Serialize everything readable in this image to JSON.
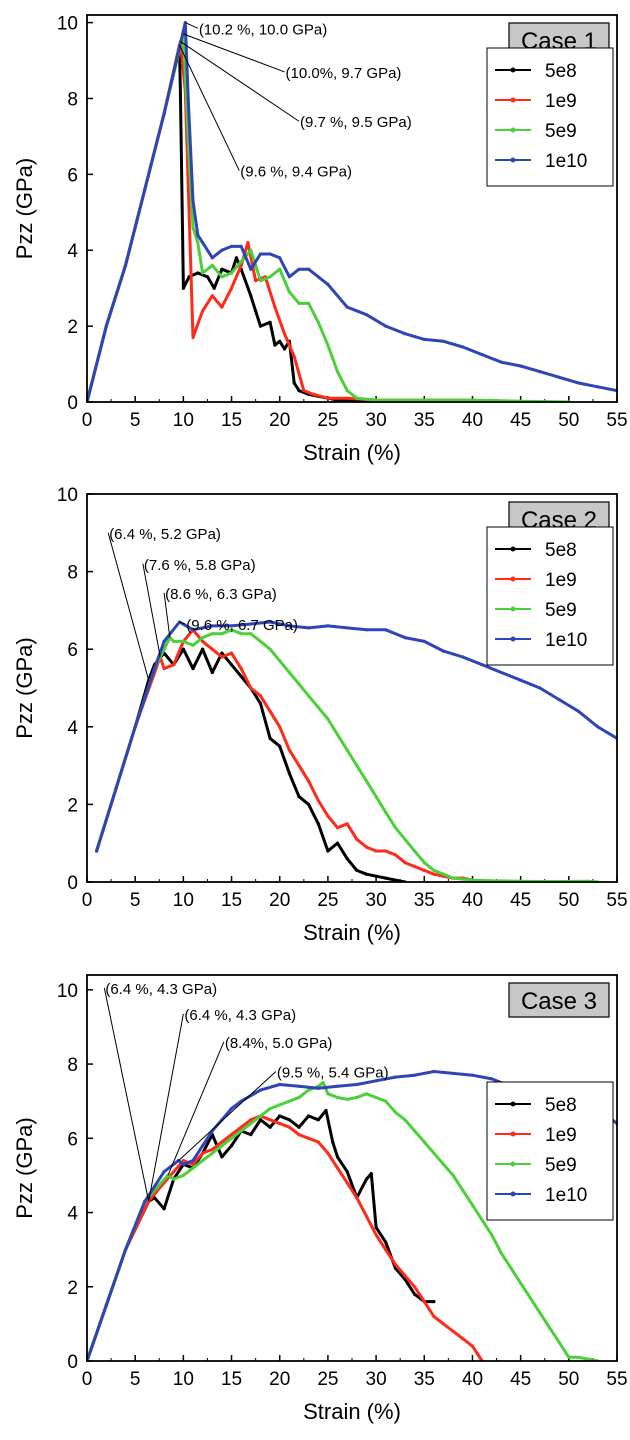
{
  "figure": {
    "colors": {
      "5e8": "#000000",
      "1e9": "#ff2a1a",
      "5e9": "#4cd03a",
      "1e10": "#2f45b5"
    }
  },
  "chart_data": [
    {
      "type": "line",
      "case_label": "Case 1",
      "xlabel": "Strain (%)",
      "ylabel": "Pzz (GPa)",
      "xlim": [
        0,
        55
      ],
      "ylim": [
        0,
        10.2
      ],
      "xticks": [
        "0",
        "5",
        "10",
        "15",
        "20",
        "25",
        "30",
        "35",
        "40",
        "45",
        "50",
        "55"
      ],
      "yticks": [
        "0",
        "2",
        "4",
        "6",
        "8",
        "10"
      ],
      "legend_position": "top-right",
      "series": [
        {
          "name": "5e8",
          "color": "#000000",
          "x": [
            0,
            2,
            4,
            6,
            8,
            9.6,
            9.7,
            10,
            10.6,
            11.5,
            12.5,
            13.2,
            14,
            15,
            15.5,
            16,
            17,
            17.5,
            18,
            19,
            19.5,
            20,
            20.5,
            21,
            21.5,
            22,
            23,
            24,
            25,
            26,
            27,
            28,
            29,
            30,
            32,
            33.5
          ],
          "y": [
            0,
            2,
            3.6,
            5.6,
            7.6,
            9.4,
            8,
            3,
            3.3,
            3.4,
            3.3,
            3,
            3.5,
            3.4,
            3.8,
            3.5,
            2.8,
            2.4,
            2,
            2.1,
            1.5,
            1.6,
            1.4,
            1.6,
            0.5,
            0.3,
            0.2,
            0.15,
            0.1,
            0.05,
            0.05,
            0.05,
            0.02,
            0.02,
            0,
            0
          ]
        },
        {
          "name": "1e9",
          "color": "#ff2a1a",
          "x": [
            0,
            2,
            4,
            6,
            8,
            9.7,
            10.2,
            11,
            12,
            13,
            14,
            15,
            16,
            16.7,
            17.5,
            18.5,
            19.5,
            20.5,
            21.5,
            22.5,
            23.5,
            25,
            27,
            30,
            35,
            40,
            43
          ],
          "y": [
            0,
            2,
            3.6,
            5.6,
            7.6,
            9.5,
            8.2,
            1.7,
            2.4,
            2.8,
            2.5,
            3,
            3.6,
            4.2,
            3.2,
            3.3,
            2.5,
            1.8,
            1.2,
            0.3,
            0.2,
            0.1,
            0.1,
            0.05,
            0.05,
            0.05,
            0
          ]
        },
        {
          "name": "5e9",
          "color": "#4cd03a",
          "x": [
            0,
            2,
            4,
            6,
            8,
            10,
            10.6,
            11,
            11.5,
            12,
            13,
            14,
            15,
            16,
            17,
            18,
            19,
            20,
            21,
            22,
            23,
            24,
            25,
            26,
            27,
            28,
            30,
            35,
            40,
            45,
            50
          ],
          "y": [
            0,
            2,
            3.6,
            5.6,
            7.6,
            9.7,
            6.5,
            4.6,
            4.2,
            3.4,
            3.6,
            3.3,
            3.4,
            3.7,
            4,
            3.2,
            3.3,
            3.5,
            2.9,
            2.6,
            2.6,
            2.1,
            1.5,
            0.8,
            0.3,
            0.1,
            0.05,
            0.05,
            0.05,
            0.02,
            0
          ]
        },
        {
          "name": "1e10",
          "color": "#2f45b5",
          "x": [
            0,
            2,
            4,
            6,
            8,
            10.2,
            10.5,
            11,
            11.5,
            12,
            13,
            14,
            15,
            16,
            17,
            18,
            19,
            20,
            21,
            22,
            23,
            25,
            27,
            29,
            31,
            33,
            35,
            37,
            39,
            41,
            43,
            45,
            47,
            49,
            51,
            53,
            55
          ],
          "y": [
            0,
            2,
            3.6,
            5.6,
            7.6,
            10,
            8,
            5.3,
            4.4,
            4.2,
            3.8,
            4,
            4.1,
            4.1,
            3.5,
            3.9,
            3.9,
            3.8,
            3.3,
            3.5,
            3.5,
            3.1,
            2.5,
            2.3,
            2,
            1.8,
            1.65,
            1.6,
            1.45,
            1.25,
            1.05,
            0.95,
            0.8,
            0.65,
            0.5,
            0.4,
            0.3
          ]
        }
      ],
      "annotations": [
        {
          "text": "(10.2 %, 10.0 GPa)",
          "px": 10.2,
          "py": 10.0,
          "tx": 11.5,
          "ty": 9.85
        },
        {
          "text": "(10.0%, 9.7 GPa)",
          "px": 10.0,
          "py": 9.7,
          "tx": 20.5,
          "ty": 8.7
        },
        {
          "text": "(9.7 %, 9.5 GPa)",
          "px": 9.7,
          "py": 9.5,
          "tx": 22.0,
          "ty": 7.4
        },
        {
          "text": "(9.6 %, 9.4 GPa)",
          "px": 9.6,
          "py": 9.4,
          "tx": 15.8,
          "ty": 6.1
        }
      ]
    },
    {
      "type": "line",
      "case_label": "Case 2",
      "xlabel": "Strain (%)",
      "ylabel": "Pzz (GPa)",
      "xlim": [
        0,
        55
      ],
      "ylim": [
        0,
        10
      ],
      "xticks": [
        "0",
        "5",
        "10",
        "15",
        "20",
        "25",
        "30",
        "35",
        "40",
        "45",
        "50",
        "55"
      ],
      "yticks": [
        "0",
        "2",
        "4",
        "6",
        "8",
        "10"
      ],
      "legend_position": "top-right",
      "series": [
        {
          "name": "5e8",
          "color": "#000000",
          "x": [
            1,
            3,
            5,
            6.4,
            7,
            8,
            9,
            10,
            11,
            12,
            13,
            14,
            15,
            16,
            17,
            18,
            19,
            20,
            21,
            22,
            23,
            24,
            25,
            26,
            27,
            28,
            29,
            30,
            31,
            32,
            33
          ],
          "y": [
            0.8,
            2.4,
            4,
            5.2,
            5.6,
            5.9,
            5.6,
            6,
            5.5,
            6,
            5.4,
            5.9,
            5.6,
            5.3,
            5,
            4.6,
            3.7,
            3.5,
            2.8,
            2.2,
            2,
            1.5,
            0.8,
            1,
            0.6,
            0.3,
            0.2,
            0.15,
            0.1,
            0.05,
            0
          ]
        },
        {
          "name": "1e9",
          "color": "#ff2a1a",
          "x": [
            1,
            3,
            5,
            7.6,
            8,
            9,
            10,
            11,
            12,
            13,
            14,
            15,
            16,
            17,
            18,
            19,
            20,
            21,
            22,
            23,
            24,
            25,
            26,
            27,
            28,
            29,
            30,
            31,
            32,
            33,
            34,
            35,
            36,
            37,
            38,
            39,
            40,
            41
          ],
          "y": [
            0.8,
            2.4,
            4,
            5.8,
            5.5,
            5.6,
            6.2,
            6.5,
            6.2,
            6,
            5.8,
            5.9,
            5.5,
            5,
            4.8,
            4.4,
            4,
            3.4,
            3,
            2.6,
            2.1,
            1.7,
            1.4,
            1.5,
            1.1,
            0.9,
            0.8,
            0.8,
            0.7,
            0.5,
            0.4,
            0.3,
            0.2,
            0.15,
            0.1,
            0.1,
            0.05,
            0
          ]
        },
        {
          "name": "5e9",
          "color": "#4cd03a",
          "x": [
            1,
            3,
            5,
            7,
            8.6,
            9,
            10,
            11,
            12,
            13,
            14,
            15,
            16,
            17,
            18,
            19,
            20,
            21,
            22,
            23,
            24,
            25,
            26,
            27,
            28,
            29,
            30,
            31,
            32,
            33,
            34,
            35,
            36,
            37,
            38,
            40,
            42,
            45,
            48,
            52,
            53
          ],
          "y": [
            0.8,
            2.4,
            4,
            5.5,
            6.3,
            6.2,
            6.2,
            6.1,
            6.3,
            6.4,
            6.4,
            6.5,
            6.4,
            6.4,
            6.2,
            6,
            5.7,
            5.4,
            5.1,
            4.8,
            4.5,
            4.2,
            3.8,
            3.4,
            3,
            2.6,
            2.2,
            1.8,
            1.4,
            1.1,
            0.8,
            0.5,
            0.3,
            0.2,
            0.1,
            0.05,
            0.03,
            0.02,
            0.01,
            0.02,
            0
          ]
        },
        {
          "name": "1e10",
          "color": "#2f45b5",
          "x": [
            1,
            3,
            5,
            7,
            8,
            9.6,
            11,
            13,
            15,
            17,
            19,
            21,
            23,
            25,
            27,
            29,
            31,
            33,
            35,
            37,
            39,
            41,
            43,
            45,
            47,
            49,
            51,
            53,
            55
          ],
          "y": [
            0.8,
            2.4,
            4,
            5.5,
            6.2,
            6.7,
            6.5,
            6.6,
            6.6,
            6.65,
            6.7,
            6.6,
            6.55,
            6.6,
            6.55,
            6.5,
            6.5,
            6.3,
            6.2,
            5.95,
            5.8,
            5.6,
            5.4,
            5.2,
            5,
            4.7,
            4.4,
            4,
            3.7
          ]
        }
      ],
      "annotations": [
        {
          "text": "(6.4 %, 5.2 GPa)",
          "px": 6.4,
          "py": 5.2,
          "tx": 2.2,
          "ty": 9.0
        },
        {
          "text": "(7.6 %, 5.8 GPa)",
          "px": 7.6,
          "py": 5.8,
          "tx": 5.8,
          "ty": 8.2
        },
        {
          "text": "(8.6 %, 6.3 GPa)",
          "px": 8.6,
          "py": 6.3,
          "tx": 8.0,
          "ty": 7.45
        },
        {
          "text": "(9.6 %, 6.7 GPa)",
          "px": 9.6,
          "py": 6.7,
          "tx": 10.2,
          "ty": 6.65
        }
      ]
    },
    {
      "type": "line",
      "case_label": "Case 3",
      "xlabel": "Strain (%)",
      "ylabel": "Pzz (GPa)",
      "xlim": [
        0,
        55
      ],
      "ylim": [
        0,
        10.4
      ],
      "xticks": [
        "0",
        "5",
        "10",
        "15",
        "20",
        "25",
        "30",
        "35",
        "40",
        "45",
        "50",
        "55"
      ],
      "yticks": [
        "0",
        "2",
        "4",
        "6",
        "8",
        "10"
      ],
      "legend_position": "right",
      "series": [
        {
          "name": "5e8",
          "color": "#000000",
          "x": [
            0,
            2,
            4,
            6.4,
            7,
            8,
            9,
            10,
            11,
            12,
            13,
            14,
            15,
            16,
            17,
            18,
            19,
            20,
            21,
            22,
            23,
            24,
            24.8,
            25.5,
            26,
            27,
            28,
            29,
            29.5,
            30,
            31,
            32,
            33,
            34,
            35,
            36
          ],
          "y": [
            0,
            1.5,
            3,
            4.3,
            4.4,
            4.1,
            4.9,
            5.3,
            5.2,
            5.6,
            6.1,
            5.5,
            5.8,
            6.2,
            6.1,
            6.5,
            6.3,
            6.6,
            6.5,
            6.3,
            6.6,
            6.5,
            6.75,
            5.9,
            5.5,
            5.1,
            4.4,
            4.9,
            5.05,
            3.6,
            3.2,
            2.5,
            2.2,
            1.8,
            1.6,
            1.6
          ]
        },
        {
          "name": "1e9",
          "color": "#ff2a1a",
          "x": [
            0,
            2,
            4,
            6.4,
            7,
            8,
            9,
            10,
            11,
            12,
            13,
            14,
            15,
            16,
            17,
            18,
            19,
            20,
            21,
            22,
            23,
            24,
            25,
            26,
            27,
            28,
            29,
            30,
            31,
            32,
            33,
            34,
            35,
            36,
            37,
            38,
            39,
            40,
            40.5,
            41
          ],
          "y": [
            0,
            1.5,
            3,
            4.3,
            4.5,
            4.8,
            5.1,
            5.4,
            5.3,
            5.6,
            5.7,
            5.9,
            6.1,
            6.3,
            6.5,
            6.6,
            6.5,
            6.4,
            6.3,
            6.1,
            6,
            5.9,
            5.6,
            5.2,
            4.8,
            4.4,
            3.9,
            3.4,
            3,
            2.6,
            2.3,
            2,
            1.6,
            1.2,
            1,
            0.8,
            0.6,
            0.4,
            0.2,
            0
          ]
        },
        {
          "name": "5e9",
          "color": "#4cd03a",
          "x": [
            0,
            2,
            4,
            6,
            8.4,
            9,
            10,
            11,
            12,
            13,
            14,
            15,
            16,
            17,
            18,
            19,
            20,
            21,
            22,
            23,
            24,
            24.5,
            25,
            26,
            27,
            28,
            29,
            30,
            31,
            32,
            33,
            34,
            35,
            36,
            37,
            38,
            39,
            40,
            41,
            42,
            43,
            44,
            45,
            46,
            47,
            48,
            49,
            50,
            51,
            52,
            53
          ],
          "y": [
            0,
            1.5,
            3,
            4.3,
            5,
            4.9,
            5,
            5.2,
            5.4,
            5.6,
            5.8,
            6,
            6.2,
            6.4,
            6.6,
            6.8,
            6.9,
            7,
            7.1,
            7.3,
            7.4,
            7.5,
            7.2,
            7.1,
            7.05,
            7.1,
            7.2,
            7.1,
            7,
            6.7,
            6.5,
            6.2,
            5.9,
            5.6,
            5.3,
            5,
            4.6,
            4.2,
            3.8,
            3.4,
            2.9,
            2.5,
            2.1,
            1.7,
            1.3,
            0.9,
            0.5,
            0.1,
            0.1,
            0.05,
            0
          ]
        },
        {
          "name": "1e10",
          "color": "#2f45b5",
          "x": [
            0,
            2,
            4,
            6,
            8,
            9.5,
            10,
            11,
            12,
            13,
            14,
            15,
            16,
            18,
            20,
            22,
            24,
            26,
            28,
            30,
            32,
            34,
            36,
            38,
            40,
            42,
            44,
            46,
            48,
            50,
            52,
            53,
            54,
            55
          ],
          "y": [
            0,
            1.5,
            3,
            4.3,
            5.1,
            5.4,
            5.3,
            5.4,
            5.8,
            6.2,
            6.5,
            6.8,
            7,
            7.3,
            7.45,
            7.4,
            7.35,
            7.4,
            7.45,
            7.55,
            7.65,
            7.7,
            7.8,
            7.75,
            7.7,
            7.6,
            7.4,
            7.3,
            7.2,
            7.1,
            7.05,
            6.8,
            6.6,
            6.4
          ]
        }
      ],
      "annotations": [
        {
          "text": "(6.4 %, 4.3 GPa)",
          "px": 6.4,
          "py": 4.3,
          "tx": 1.8,
          "ty": 10.05
        },
        {
          "text": "(6.4 %, 4.3 GPa)",
          "px": 6.4,
          "py": 4.3,
          "tx": 10.0,
          "ty": 9.35
        },
        {
          "text": "(8.4%, 5.0 GPa)",
          "px": 8.4,
          "py": 5.0,
          "tx": 14.2,
          "ty": 8.6
        },
        {
          "text": "(9.5 %, 5.4 GPa)",
          "px": 9.5,
          "py": 5.4,
          "tx": 19.6,
          "ty": 7.8
        }
      ]
    }
  ]
}
